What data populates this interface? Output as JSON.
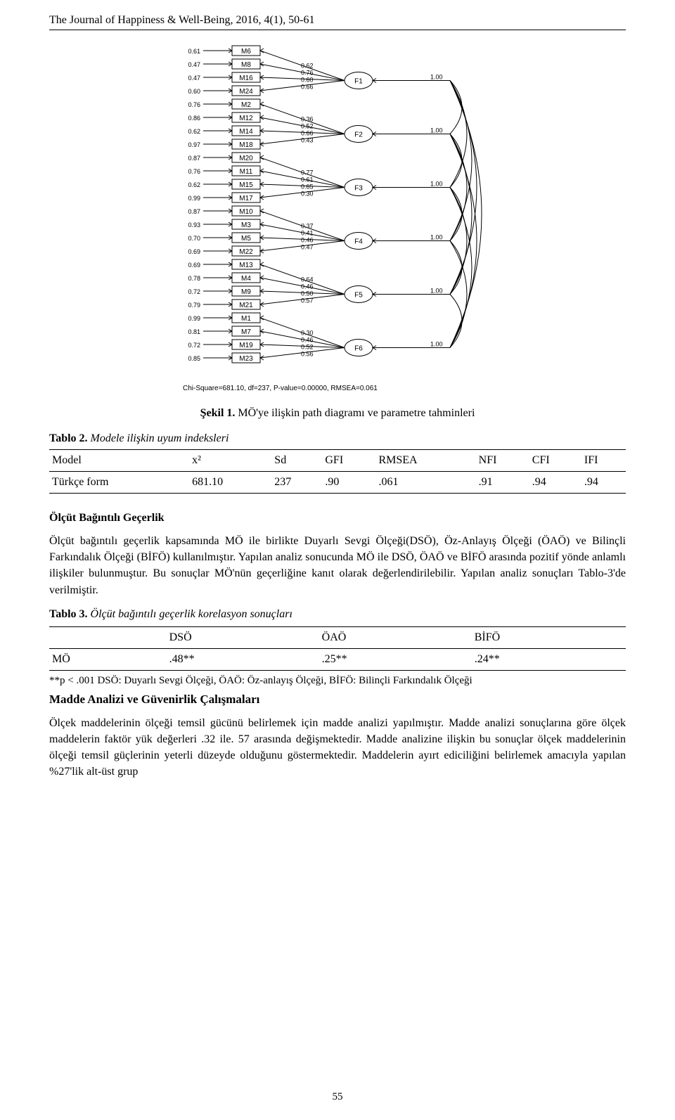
{
  "header": {
    "running_head": "The Journal of Happiness & Well-Being, 2016, 4(1), 50-61"
  },
  "diagram": {
    "type": "path-diagram",
    "colors": {
      "stroke": "#000000",
      "background": "#ffffff"
    },
    "font": {
      "label_size": 10,
      "num_size": 9
    },
    "items": [
      {
        "e": 0.61,
        "m": "M6"
      },
      {
        "e": 0.47,
        "m": "M8"
      },
      {
        "e": 0.47,
        "m": "M16"
      },
      {
        "e": 0.6,
        "m": "M24"
      },
      {
        "e": 0.76,
        "m": "M2"
      },
      {
        "e": 0.86,
        "m": "M12"
      },
      {
        "e": 0.62,
        "m": "M14"
      },
      {
        "e": 0.97,
        "m": "M18"
      },
      {
        "e": 0.87,
        "m": "M20"
      },
      {
        "e": 0.76,
        "m": "M11"
      },
      {
        "e": 0.62,
        "m": "M15"
      },
      {
        "e": 0.99,
        "m": "M17"
      },
      {
        "e": 0.87,
        "m": "M10"
      },
      {
        "e": 0.93,
        "m": "M3"
      },
      {
        "e": 0.7,
        "m": "M5"
      },
      {
        "e": 0.69,
        "m": "M22"
      },
      {
        "e": 0.69,
        "m": "M13"
      },
      {
        "e": 0.78,
        "m": "M4"
      },
      {
        "e": 0.72,
        "m": "M9"
      },
      {
        "e": 0.79,
        "m": "M21"
      },
      {
        "e": 0.99,
        "m": "M1"
      },
      {
        "e": 0.81,
        "m": "M7"
      },
      {
        "e": 0.72,
        "m": "M19"
      },
      {
        "e": 0.85,
        "m": "M23"
      }
    ],
    "loadings": [
      [
        0.62,
        0.76,
        0.6,
        0.66
      ],
      [
        0.36,
        0.52,
        0.66,
        0.43
      ],
      [
        0.77,
        0.61,
        0.65,
        0.3
      ],
      [
        0.37,
        0.41,
        0.46,
        0.47
      ],
      [
        0.64,
        0.46,
        0.5,
        0.57
      ],
      [
        0.3,
        0.46,
        0.52,
        0.56
      ]
    ],
    "factors": [
      "F1",
      "F2",
      "F3",
      "F4",
      "F5",
      "F6"
    ],
    "factor_load": 1.0,
    "fit_line": "Chi-Square=681.10, df=237, P-value=0.00000, RMSEA=0.061"
  },
  "caption1": {
    "bold": "Şekil 1.",
    "rest": " MÖ'ye ilişkin path diagramı ve parametre tahminleri"
  },
  "table2": {
    "title_bold": "Tablo 2.",
    "title_rest": " Modele ilişkin uyum indeksleri",
    "columns": [
      "Model",
      "x²",
      "Sd",
      "GFI",
      "RMSEA",
      "NFI",
      "CFI",
      "IFI"
    ],
    "row": [
      "Türkçe form",
      "681.10",
      "237",
      ".90",
      ".061",
      ".91",
      ".94",
      ".94"
    ]
  },
  "section1": {
    "heading": "Ölçüt Bağıntılı Geçerlik",
    "para": "Ölçüt bağıntılı geçerlik kapsamında MÖ ile birlikte Duyarlı Sevgi Ölçeği(DSÖ), Öz-Anlayış Ölçeği (ÖAÖ) ve Bilinçli Farkındalık Ölçeği (BİFÖ) kullanılmıştır. Yapılan analiz sonucunda MÖ ile DSÖ, ÖAÖ ve BİFÖ arasında pozitif yönde anlamlı ilişkiler bulunmuştur. Bu sonuçlar MÖ'nün geçerliğine kanıt olarak değerlendirilebilir. Yapılan analiz sonuçları Tablo-3'de verilmiştir."
  },
  "table3": {
    "title_bold": "Tablo 3.",
    "title_rest": " Ölçüt bağıntılı geçerlik korelasyon sonuçları",
    "columns": [
      "",
      "DSÖ",
      "ÖAÖ",
      "BİFÖ"
    ],
    "row": [
      "MÖ",
      ".48**",
      ".25**",
      ".24**"
    ],
    "footnote": "**p < .001 DSÖ: Duyarlı Sevgi Ölçeği, ÖAÖ: Öz-anlayış Ölçeği, BİFÖ: Bilinçli Farkındalık Ölçeği"
  },
  "section2": {
    "heading": "Madde Analizi ve Güvenirlik Çalışmaları",
    "para": "Ölçek maddelerinin ölçeği temsil gücünü belirlemek için madde analizi yapılmıştır. Madde analizi sonuçlarına göre ölçek maddelerin faktör yük değerleri .32 ile. 57 arasında değişmektedir. Madde analizine ilişkin bu sonuçlar ölçek maddelerinin ölçeği temsil güçlerinin yeterli düzeyde olduğunu göstermektedir. Maddelerin ayırt ediciliğini belirlemek amacıyla yapılan %27'lik alt-üst grup"
  },
  "page_number": "55"
}
